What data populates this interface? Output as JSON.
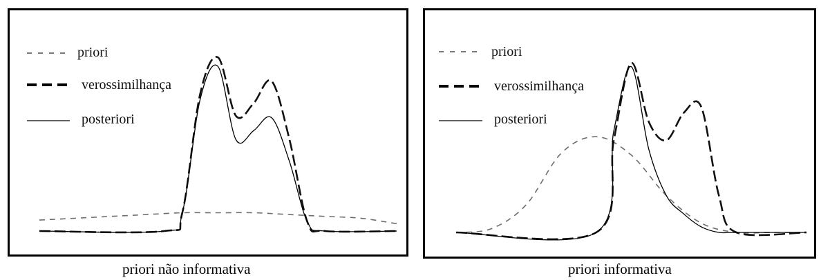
{
  "legend": {
    "prior_label": "priori",
    "likelihood_label": "verossimilhança",
    "posterior_label": "posteriori"
  },
  "captions": {
    "left": "priori não informativa",
    "right": "priori informativa"
  },
  "chart_data": [
    {
      "type": "line",
      "caption": "priori não informativa",
      "axes": "none",
      "grid": false,
      "legend_position": "top-left",
      "xlim": [
        0,
        1
      ],
      "ylim": [
        0,
        1
      ],
      "series": [
        {
          "name": "priori",
          "style": "dashed-light",
          "x": [
            0.0,
            0.2,
            0.3,
            0.4,
            0.5,
            0.6,
            0.7,
            0.8,
            0.9,
            1.0
          ],
          "y": [
            0.06,
            0.08,
            0.09,
            0.1,
            0.1,
            0.1,
            0.09,
            0.08,
            0.07,
            0.04
          ]
        },
        {
          "name": "verossimilhança",
          "style": "dashed-heavy",
          "x": [
            0.0,
            0.35,
            0.4,
            0.45,
            0.5,
            0.55,
            0.6,
            0.65,
            0.7,
            0.75,
            0.8,
            1.0
          ],
          "y": [
            0.0,
            0.0,
            0.1,
            0.75,
            0.95,
            0.63,
            0.7,
            0.82,
            0.5,
            0.05,
            0.0,
            0.0
          ]
        },
        {
          "name": "posteriori",
          "style": "solid",
          "x": [
            0.0,
            0.35,
            0.4,
            0.45,
            0.5,
            0.55,
            0.6,
            0.65,
            0.7,
            0.75,
            0.8,
            1.0
          ],
          "y": [
            0.0,
            0.0,
            0.1,
            0.72,
            0.9,
            0.5,
            0.55,
            0.62,
            0.38,
            0.05,
            0.0,
            0.0
          ]
        }
      ]
    },
    {
      "type": "line",
      "caption": "priori informativa",
      "axes": "none",
      "grid": false,
      "legend_position": "top-left",
      "xlim": [
        0,
        1
      ],
      "ylim": [
        0,
        1
      ],
      "series": [
        {
          "name": "priori",
          "style": "dashed-light",
          "x": [
            0.0,
            0.1,
            0.2,
            0.3,
            0.4,
            0.5,
            0.6,
            0.7,
            0.8,
            0.9,
            1.0
          ],
          "y": [
            0.0,
            0.02,
            0.15,
            0.43,
            0.52,
            0.42,
            0.2,
            0.05,
            0.0,
            0.0,
            0.0
          ]
        },
        {
          "name": "verossimilhança",
          "style": "dashed-heavy",
          "x": [
            0.0,
            0.4,
            0.45,
            0.5,
            0.55,
            0.6,
            0.65,
            0.7,
            0.75,
            0.8,
            1.0
          ],
          "y": [
            0.0,
            0.0,
            0.5,
            0.92,
            0.6,
            0.5,
            0.65,
            0.68,
            0.2,
            0.0,
            0.0
          ]
        },
        {
          "name": "posteriori",
          "style": "solid",
          "x": [
            0.0,
            0.4,
            0.45,
            0.5,
            0.55,
            0.6,
            0.65,
            0.7,
            0.75,
            0.8,
            1.0
          ],
          "y": [
            0.0,
            0.0,
            0.55,
            0.9,
            0.45,
            0.2,
            0.1,
            0.03,
            0.0,
            0.0,
            0.0
          ]
        }
      ]
    }
  ]
}
